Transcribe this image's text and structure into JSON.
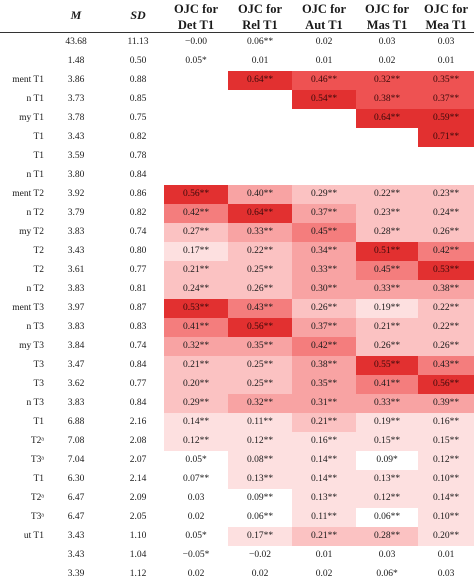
{
  "table": {
    "columns": [
      {
        "label": "M",
        "italic": true
      },
      {
        "label": "SD",
        "italic": true
      },
      {
        "label": "OJC for\nDet T1"
      },
      {
        "label": "OJC for\nRel T1"
      },
      {
        "label": "OJC for\nAut T1"
      },
      {
        "label": "OJC for\nMas T1"
      },
      {
        "label": "OJC for\nMea T1"
      }
    ],
    "shade_colors": {
      "0": "#ffffff",
      "1": "#fde0e0",
      "2": "#fbc2c2",
      "3": "#f8a3a3",
      "4": "#f47d7d",
      "5": "#ee5252",
      "6": "#e23030"
    },
    "rows": [
      {
        "label": "",
        "cells": [
          "43.68",
          "11.13",
          "−0.00",
          "0.06**",
          "0.02",
          "0.03",
          "0.03"
        ],
        "shade": [
          0,
          0,
          0,
          0,
          0,
          0,
          0
        ]
      },
      {
        "label": "",
        "cells": [
          "1.48",
          "0.50",
          "0.05*",
          "0.01",
          "0.01",
          "0.02",
          "0.01"
        ],
        "shade": [
          0,
          0,
          0,
          0,
          0,
          0,
          0
        ]
      },
      {
        "label": "ment T1",
        "cells": [
          "3.86",
          "0.88",
          "",
          "0.64**",
          "0.46**",
          "0.32**",
          "0.35**"
        ],
        "shade": [
          0,
          0,
          0,
          6,
          5,
          5,
          5
        ]
      },
      {
        "label": "n T1",
        "cells": [
          "3.73",
          "0.85",
          "",
          "",
          "0.54**",
          "0.38**",
          "0.37**"
        ],
        "shade": [
          0,
          0,
          0,
          0,
          6,
          5,
          5
        ]
      },
      {
        "label": "my T1",
        "cells": [
          "3.78",
          "0.75",
          "",
          "",
          "",
          "0.64**",
          "0.59**"
        ],
        "shade": [
          0,
          0,
          0,
          0,
          0,
          6,
          6
        ]
      },
      {
        "label": "T1",
        "cells": [
          "3.43",
          "0.82",
          "",
          "",
          "",
          "",
          "0.71**"
        ],
        "shade": [
          0,
          0,
          0,
          0,
          0,
          0,
          6
        ]
      },
      {
        "label": "T1",
        "cells": [
          "3.59",
          "0.78",
          "",
          "",
          "",
          "",
          ""
        ],
        "shade": [
          0,
          0,
          0,
          0,
          0,
          0,
          0
        ]
      },
      {
        "label": "n T1",
        "cells": [
          "3.80",
          "0.84",
          "",
          "",
          "",
          "",
          ""
        ],
        "shade": [
          0,
          0,
          0,
          0,
          0,
          0,
          0
        ]
      },
      {
        "label": "ment T2",
        "cells": [
          "3.92",
          "0.86",
          "0.56**",
          "0.40**",
          "0.29**",
          "0.22**",
          "0.23**"
        ],
        "shade": [
          0,
          0,
          6,
          3,
          2,
          2,
          2
        ]
      },
      {
        "label": "n T2",
        "cells": [
          "3.79",
          "0.82",
          "0.42**",
          "0.64**",
          "0.37**",
          "0.23**",
          "0.24**"
        ],
        "shade": [
          0,
          0,
          4,
          6,
          3,
          2,
          2
        ]
      },
      {
        "label": "my T2",
        "cells": [
          "3.83",
          "0.74",
          "0.27**",
          "0.33**",
          "0.45**",
          "0.28**",
          "0.26**"
        ],
        "shade": [
          0,
          0,
          2,
          3,
          4,
          2,
          2
        ]
      },
      {
        "label": "T2",
        "cells": [
          "3.43",
          "0.80",
          "0.17**",
          "0.22**",
          "0.34**",
          "0.51**",
          "0.42**"
        ],
        "shade": [
          0,
          0,
          1,
          2,
          3,
          6,
          4
        ]
      },
      {
        "label": "T2",
        "cells": [
          "3.61",
          "0.77",
          "0.21**",
          "0.25**",
          "0.33**",
          "0.45**",
          "0.53**"
        ],
        "shade": [
          0,
          0,
          2,
          2,
          3,
          4,
          6
        ]
      },
      {
        "label": "n T2",
        "cells": [
          "3.83",
          "0.81",
          "0.24**",
          "0.26**",
          "0.30**",
          "0.33**",
          "0.38**"
        ],
        "shade": [
          0,
          0,
          2,
          2,
          3,
          3,
          3
        ]
      },
      {
        "label": "ment T3",
        "cells": [
          "3.97",
          "0.87",
          "0.53**",
          "0.43**",
          "0.26**",
          "0.19**",
          "0.22**"
        ],
        "shade": [
          0,
          0,
          6,
          4,
          2,
          1,
          2
        ]
      },
      {
        "label": "n T3",
        "cells": [
          "3.83",
          "0.83",
          "0.41**",
          "0.56**",
          "0.37**",
          "0.21**",
          "0.22**"
        ],
        "shade": [
          0,
          0,
          4,
          6,
          3,
          2,
          2
        ]
      },
      {
        "label": "my T3",
        "cells": [
          "3.84",
          "0.74",
          "0.32**",
          "0.35**",
          "0.42**",
          "0.26**",
          "0.26**"
        ],
        "shade": [
          0,
          0,
          3,
          3,
          4,
          2,
          2
        ]
      },
      {
        "label": "T3",
        "cells": [
          "3.47",
          "0.84",
          "0.21**",
          "0.25**",
          "0.38**",
          "0.55**",
          "0.43**"
        ],
        "shade": [
          0,
          0,
          2,
          2,
          3,
          6,
          4
        ]
      },
      {
        "label": "T3",
        "cells": [
          "3.62",
          "0.77",
          "0.20**",
          "0.25**",
          "0.35**",
          "0.41**",
          "0.56**"
        ],
        "shade": [
          0,
          0,
          2,
          2,
          3,
          4,
          6
        ]
      },
      {
        "label": "n T3",
        "cells": [
          "3.83",
          "0.84",
          "0.29**",
          "0.32**",
          "0.31**",
          "0.33**",
          "0.39**"
        ],
        "shade": [
          0,
          0,
          2,
          3,
          3,
          3,
          3
        ]
      },
      {
        "label": "T1",
        "cells": [
          "6.88",
          "2.16",
          "0.14**",
          "0.11**",
          "0.21**",
          "0.19**",
          "0.16**"
        ],
        "shade": [
          0,
          0,
          1,
          1,
          2,
          1,
          1
        ]
      },
      {
        "label": "T2ᵃ",
        "cells": [
          "7.08",
          "2.08",
          "0.12**",
          "0.12**",
          "0.16**",
          "0.15**",
          "0.15**"
        ],
        "shade": [
          0,
          0,
          1,
          1,
          1,
          1,
          1
        ]
      },
      {
        "label": "T3ᵃ",
        "cells": [
          "7.04",
          "2.07",
          "0.05*",
          "0.08**",
          "0.14**",
          "0.09*",
          "0.12**"
        ],
        "shade": [
          0,
          0,
          0,
          1,
          1,
          0,
          1
        ]
      },
      {
        "label": "T1",
        "cells": [
          "6.30",
          "2.14",
          "0.07**",
          "0.13**",
          "0.14**",
          "0.13**",
          "0.10**"
        ],
        "shade": [
          0,
          0,
          0,
          1,
          1,
          1,
          1
        ]
      },
      {
        "label": "T2ᵃ",
        "cells": [
          "6.47",
          "2.09",
          "0.03",
          "0.09**",
          "0.13**",
          "0.12**",
          "0.14**"
        ],
        "shade": [
          0,
          0,
          0,
          0,
          1,
          1,
          1
        ]
      },
      {
        "label": "T3ᵃ",
        "cells": [
          "6.47",
          "2.05",
          "0.02",
          "0.06**",
          "0.11**",
          "0.06**",
          "0.10**"
        ],
        "shade": [
          0,
          0,
          0,
          0,
          1,
          0,
          1
        ]
      },
      {
        "label": "ut T1",
        "cells": [
          "3.43",
          "1.10",
          "0.05*",
          "0.17**",
          "0.21**",
          "0.28**",
          "0.20**"
        ],
        "shade": [
          0,
          0,
          0,
          1,
          2,
          2,
          1
        ]
      },
      {
        "label": "",
        "cells": [
          "3.43",
          "1.04",
          "−0.05*",
          "−0.02",
          "0.01",
          "0.03",
          "0.01"
        ],
        "shade": [
          0,
          0,
          0,
          0,
          0,
          0,
          0
        ]
      },
      {
        "label": "",
        "cells": [
          "3.39",
          "1.12",
          "0.02",
          "0.02",
          "0.02",
          "0.06*",
          "0.03"
        ],
        "shade": [
          0,
          0,
          0,
          0,
          0,
          0,
          0
        ]
      }
    ]
  }
}
